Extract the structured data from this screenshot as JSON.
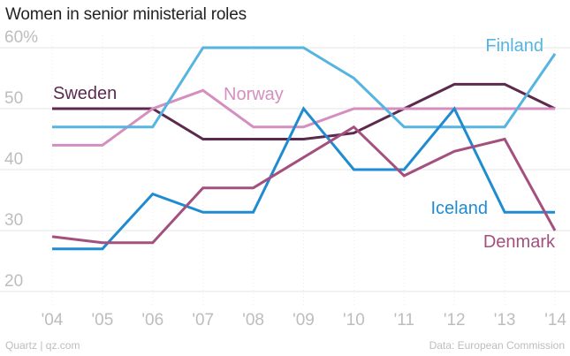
{
  "chart_data": {
    "type": "line",
    "title": "Women in senior ministerial roles",
    "x": [
      "'04",
      "'05",
      "'06",
      "'07",
      "'08",
      "'09",
      "'10",
      "'11",
      "'12",
      "'13",
      "'14"
    ],
    "y_ticks": [
      "60%",
      "50",
      "40",
      "30",
      "20"
    ],
    "ylim": [
      20,
      62
    ],
    "grid": true,
    "series": [
      {
        "name": "Sweden",
        "color": "#5b2a4e",
        "values": [
          50,
          50,
          50,
          45,
          45,
          45,
          46,
          50,
          54,
          54,
          50
        ]
      },
      {
        "name": "Norway",
        "color": "#d48fc0",
        "values": [
          44,
          44,
          50,
          53,
          47,
          47,
          50,
          50,
          50,
          50,
          50
        ]
      },
      {
        "name": "Finland",
        "color": "#55b5e0",
        "values": [
          47,
          47,
          47,
          60,
          60,
          60,
          55,
          47,
          47,
          47,
          59
        ]
      },
      {
        "name": "Iceland",
        "color": "#1f8bd0",
        "values": [
          27,
          27,
          36,
          33,
          33,
          50,
          40,
          40,
          50,
          33,
          33
        ]
      },
      {
        "name": "Denmark",
        "color": "#a4507f",
        "values": [
          29,
          28,
          28,
          37,
          37,
          42,
          47,
          39,
          43,
          45,
          30
        ]
      }
    ]
  },
  "footer": {
    "source_left": "Quartz | qz.com",
    "source_right": "Data: European Commission"
  }
}
